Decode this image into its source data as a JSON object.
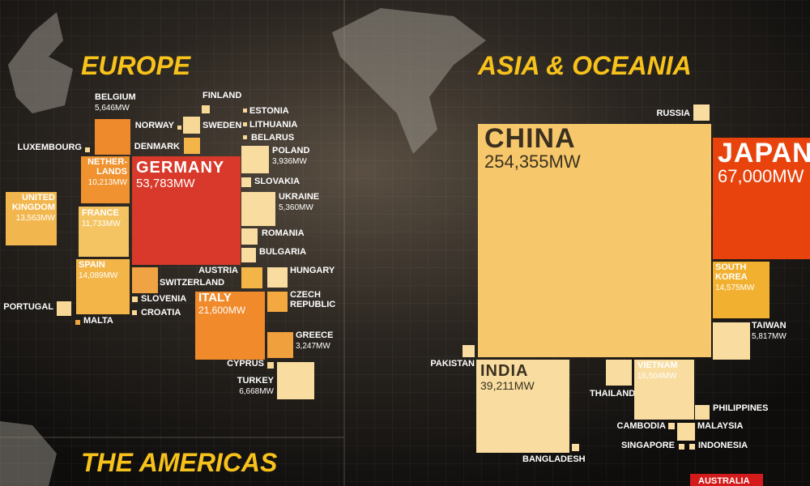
{
  "regions": [
    {
      "title": "EUROPE",
      "countries": [
        {
          "name": "GERMANY",
          "capacity": "53,783MW"
        },
        {
          "name": "BELGIUM",
          "capacity": "5,646MW"
        },
        {
          "name": [
            "NETHER-",
            "LANDS"
          ],
          "capacity": "10,213MW"
        },
        {
          "name": "FRANCE",
          "capacity": "11,733MW"
        },
        {
          "name": "SPAIN",
          "capacity": "14,089MW"
        },
        {
          "name": [
            "UNITED",
            "KINGDOM"
          ],
          "capacity": "13,563MW"
        },
        {
          "name": "PORTUGAL"
        },
        {
          "name": "MALTA"
        },
        {
          "name": "LUXEMBOURG"
        },
        {
          "name": "SWITZERLAND"
        },
        {
          "name": "SLOVENIA"
        },
        {
          "name": "CROATIA"
        },
        {
          "name": "ITALY",
          "capacity": "21,600MW"
        },
        {
          "name": "NORWAY"
        },
        {
          "name": "FINLAND"
        },
        {
          "name": "SWEDEN"
        },
        {
          "name": "DENMARK"
        },
        {
          "name": "ESTONIA"
        },
        {
          "name": "LITHUANIA"
        },
        {
          "name": "BELARUS"
        },
        {
          "name": "POLAND",
          "capacity": "3,936MW"
        },
        {
          "name": "SLOVAKIA"
        },
        {
          "name": "UKRAINE",
          "capacity": "5,360MW"
        },
        {
          "name": "ROMANIA"
        },
        {
          "name": "BULGARIA"
        },
        {
          "name": "AUSTRIA"
        },
        {
          "name": "HUNGARY"
        },
        {
          "name": [
            "CZECH",
            "REPUBLIC"
          ]
        },
        {
          "name": "GREECE",
          "capacity": "3,247MW"
        },
        {
          "name": "CYPRUS"
        },
        {
          "name": "TURKEY",
          "capacity": "6,668MW"
        }
      ]
    },
    {
      "title": "ASIA & OCEANIA",
      "countries": [
        {
          "name": "CHINA",
          "capacity": "254,355MW"
        },
        {
          "name": "JAPAN",
          "capacity": "67,000MW"
        },
        {
          "name": "RUSSIA"
        },
        {
          "name": [
            "SOUTH",
            "KOREA"
          ],
          "capacity": "14,575MW"
        },
        {
          "name": "TAIWAN",
          "capacity": "5,817MW"
        },
        {
          "name": "INDIA",
          "capacity": "39,211MW"
        },
        {
          "name": "PAKISTAN"
        },
        {
          "name": "BANGLADESH"
        },
        {
          "name": "THAILAND"
        },
        {
          "name": "VIETNAM",
          "capacity": "16,504MW"
        },
        {
          "name": "PHILIPPINES"
        },
        {
          "name": "CAMBODIA"
        },
        {
          "name": "MALAYSIA"
        },
        {
          "name": "SINGAPORE"
        },
        {
          "name": "INDONESIA"
        },
        {
          "name": "AUSTRALIA"
        }
      ]
    },
    {
      "title": "THE AMERICAS",
      "countries": []
    }
  ]
}
